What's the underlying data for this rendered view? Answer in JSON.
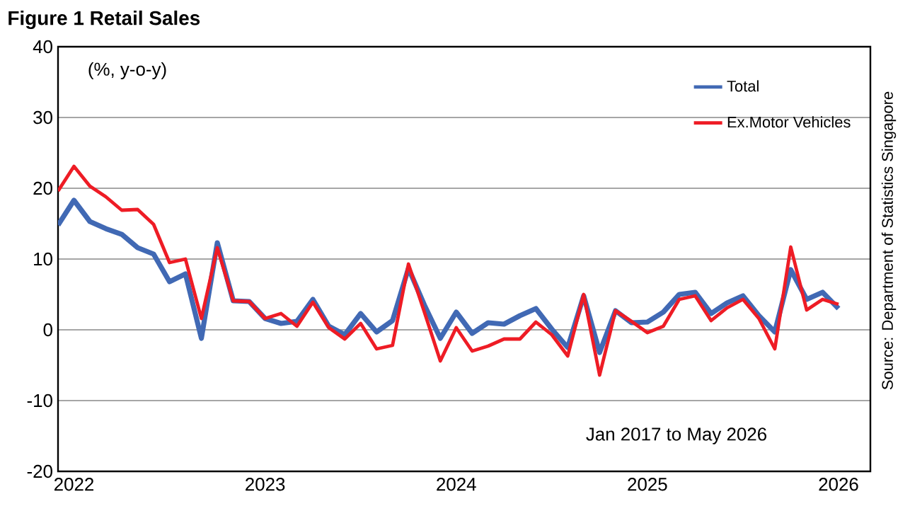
{
  "chart_data": {
    "type": "line",
    "title": "Figure 1 Retail Sales",
    "x": [
      "2021-12",
      "2022-01",
      "2022-02",
      "2022-03",
      "2022-04",
      "2022-05",
      "2022-06",
      "2022-07",
      "2022-08",
      "2022-09",
      "2022-10",
      "2022-11",
      "2022-12",
      "2023-01",
      "2023-02",
      "2023-03",
      "2023-04",
      "2023-05",
      "2023-06",
      "2023-07",
      "2023-08",
      "2023-09",
      "2023-10",
      "2023-11",
      "2023-12",
      "2024-01",
      "2024-02",
      "2024-03",
      "2024-04",
      "2024-05",
      "2024-06",
      "2024-07",
      "2024-08",
      "2024-09",
      "2024-10",
      "2024-11",
      "2024-12",
      "2025-01",
      "2025-02",
      "2025-03",
      "2025-04",
      "2025-05",
      "2025-06",
      "2025-07",
      "2025-08",
      "2025-09",
      "2025-10",
      "2025-11",
      "2025-12",
      "2026-01"
    ],
    "series": [
      {
        "name": "Total",
        "color": "#4169b4",
        "values": [
          14.8,
          18.3,
          15.3,
          14.3,
          13.5,
          11.6,
          10.7,
          6.8,
          7.9,
          -1.2,
          12.3,
          4.1,
          4.0,
          1.6,
          0.9,
          1.2,
          4.3,
          0.5,
          -0.7,
          2.3,
          -0.3,
          1.3,
          8.7,
          3.5,
          -1.2,
          2.5,
          -0.5,
          1.0,
          0.8,
          2.0,
          3.0,
          0.1,
          -2.5,
          4.8,
          -3.2,
          2.7,
          1.0,
          1.1,
          2.5,
          5.0,
          5.3,
          2.3,
          3.8,
          4.8,
          2.0,
          -0.3,
          8.5,
          4.3,
          5.3,
          3.0
        ]
      },
      {
        "name": "Ex.Motor Vehicles",
        "color": "#ee1c25",
        "values": [
          19.6,
          23.1,
          20.3,
          18.8,
          16.9,
          17.0,
          14.9,
          9.5,
          10.0,
          1.6,
          11.6,
          4.1,
          4.0,
          1.6,
          2.3,
          0.5,
          3.9,
          0.3,
          -1.3,
          0.9,
          -2.7,
          -2.2,
          9.3,
          2.5,
          -4.4,
          0.3,
          -3.0,
          -2.3,
          -1.3,
          -1.3,
          1.1,
          -0.7,
          -3.7,
          5.0,
          -6.4,
          2.7,
          1.2,
          -0.4,
          0.5,
          4.3,
          4.8,
          1.3,
          3.1,
          4.3,
          1.6,
          -2.7,
          11.7,
          2.8,
          4.3,
          3.6
        ]
      }
    ],
    "xlim": [
      "2021-12",
      "2026-03"
    ],
    "xticks": [
      "2022",
      "2023",
      "2024",
      "2025",
      "2026"
    ],
    "ylim": [
      -20,
      40
    ],
    "yticks": [
      -20,
      -10,
      0,
      10,
      20,
      30,
      40
    ],
    "grid": "y",
    "legend": "top right",
    "marker": "none",
    "line_style": "solid",
    "annotations": [
      "(%, y-o-y)",
      "Jan 2017 to May 2026",
      "Source: Department of Statistics Singapore"
    ]
  }
}
